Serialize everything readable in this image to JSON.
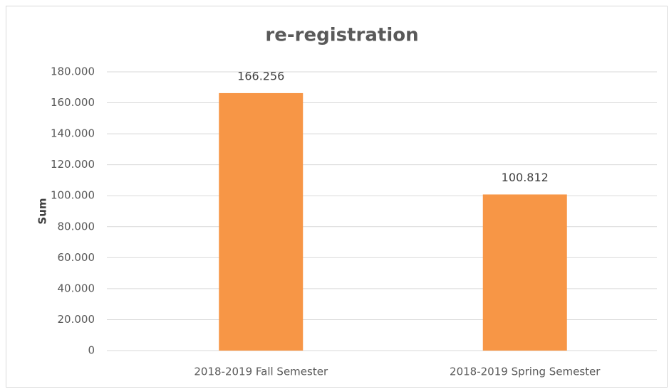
{
  "chart_data": {
    "type": "bar",
    "title": "re-registration",
    "y_label": "Sum",
    "categories": [
      "2018-2019 Fall Semester",
      "2018-2019 Spring Semester"
    ],
    "values": [
      166256,
      100812
    ],
    "value_labels": [
      "166.256",
      "100.812"
    ],
    "color": "#f79646",
    "ylim": [
      0,
      180000
    ],
    "yticks": [
      0,
      {
        "value": 20000,
        "label": "20.000"
      },
      {
        "value": 40000,
        "label": "40.000"
      },
      {
        "value": 60000,
        "label": "60.000"
      },
      {
        "value": 80000,
        "label": "80.000"
      },
      {
        "value": 100000,
        "label": "100.000"
      },
      {
        "value": 120000,
        "label": "120.000"
      },
      {
        "value": 140000,
        "label": "140.000"
      },
      {
        "value": 160000,
        "label": "160.000"
      },
      {
        "value": 180000,
        "label": "180.000"
      }
    ],
    "grid": true
  }
}
